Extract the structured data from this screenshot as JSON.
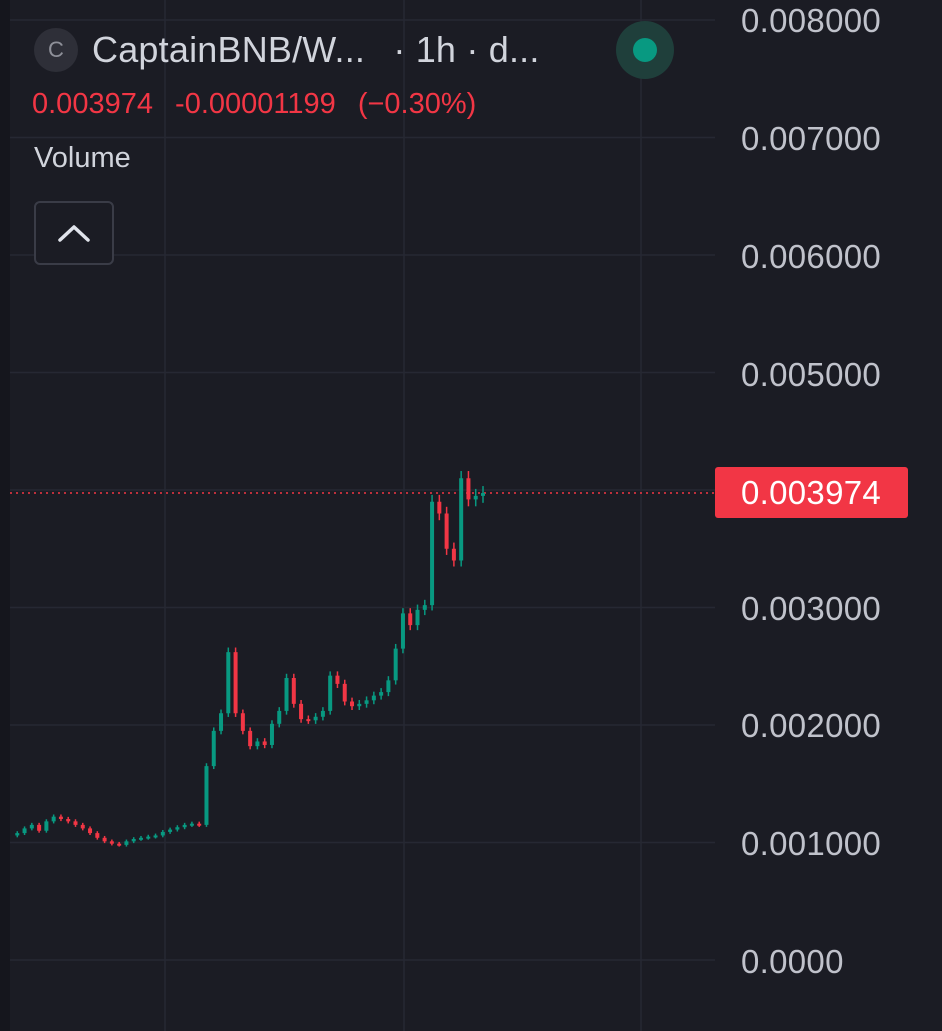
{
  "header": {
    "symbol_logo_letter": "C",
    "symbol_title": "CaptainBNB/W...",
    "interval": "· 1h · d...",
    "status_color": "#089981"
  },
  "price": {
    "last": "0.003974",
    "change": "-0.00001199",
    "change_percent": "(−0.30%)",
    "color": "#f23645"
  },
  "indicator": {
    "volume_label": "Volume",
    "collapse_icon": "chevron-up-icon"
  },
  "price_axis": {
    "labels": [
      "0.008000",
      "0.007000",
      "0.006000",
      "0.005000",
      "0.003000",
      "0.002000",
      "0.001000",
      "0.0000"
    ],
    "last_price_tag": "0.003974",
    "tag_color": "#f23645"
  },
  "chart_data": {
    "type": "line",
    "title": "",
    "xlabel": "",
    "ylabel": "",
    "ylim": [
      0,
      0.008
    ],
    "up_color": "#089981",
    "down_color": "#f23645",
    "last_price": 0.003974,
    "series": [
      {
        "values": [
          0.00106,
          0.00108,
          0.00112,
          0.00115,
          0.0011,
          0.00118,
          0.00122,
          0.0012,
          0.00118,
          0.00115,
          0.00112,
          0.00108,
          0.00104,
          0.00101,
          0.00099,
          0.00098,
          0.00101,
          0.00103,
          0.00104,
          0.00105,
          0.00106,
          0.00109,
          0.00111,
          0.00113,
          0.00115,
          0.00116,
          0.00115,
          0.00165,
          0.00195,
          0.0021,
          0.00262,
          0.0021,
          0.00195,
          0.00182,
          0.00186,
          0.00183,
          0.00201,
          0.00212,
          0.0024,
          0.00218,
          0.00205,
          0.00204,
          0.00207,
          0.00212,
          0.00242,
          0.00235,
          0.0022,
          0.00216,
          0.00218,
          0.00221,
          0.00225,
          0.00228,
          0.00238,
          0.00265,
          0.00295,
          0.00285,
          0.00298,
          0.00302,
          0.0039,
          0.0038,
          0.0035,
          0.0034,
          0.0041,
          0.00392,
          0.00395,
          0.003974
        ]
      }
    ]
  }
}
